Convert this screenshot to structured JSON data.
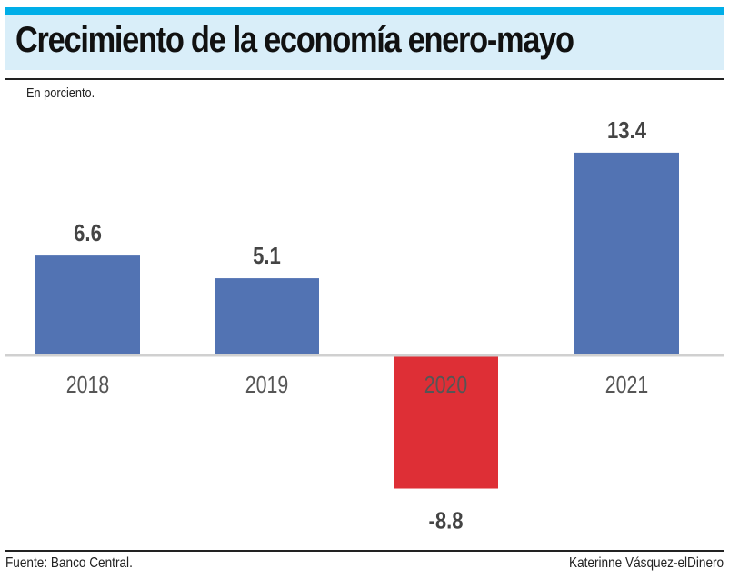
{
  "header": {
    "title": "Crecimiento de la economía enero-mayo",
    "unit_note": "En porciento."
  },
  "footer": {
    "source": "Fuente: Banco Central.",
    "credit": "Katerinne Vásquez-elDinero"
  },
  "colors": {
    "accent_bar": "#00aee8",
    "title_background": "#d9eef9",
    "positive": "#5273b3",
    "negative": "#de2f36",
    "label_text": "#444444",
    "axis_line": "#d0d0d0"
  },
  "chart_data": {
    "type": "bar",
    "title": "Crecimiento de la economía enero-mayo",
    "subtitle": "En porciento.",
    "xlabel": "",
    "ylabel": "",
    "categories": [
      "2018",
      "2019",
      "2020",
      "2021"
    ],
    "values": [
      6.6,
      5.1,
      -8.8,
      13.4
    ],
    "data_labels": [
      "6.6",
      "5.1",
      "-8.8",
      "13.4"
    ],
    "ylim": [
      -8.8,
      13.4
    ],
    "grid": false,
    "legend": "none",
    "bar_colors": [
      "#5273b3",
      "#5273b3",
      "#de2f36",
      "#5273b3"
    ]
  }
}
